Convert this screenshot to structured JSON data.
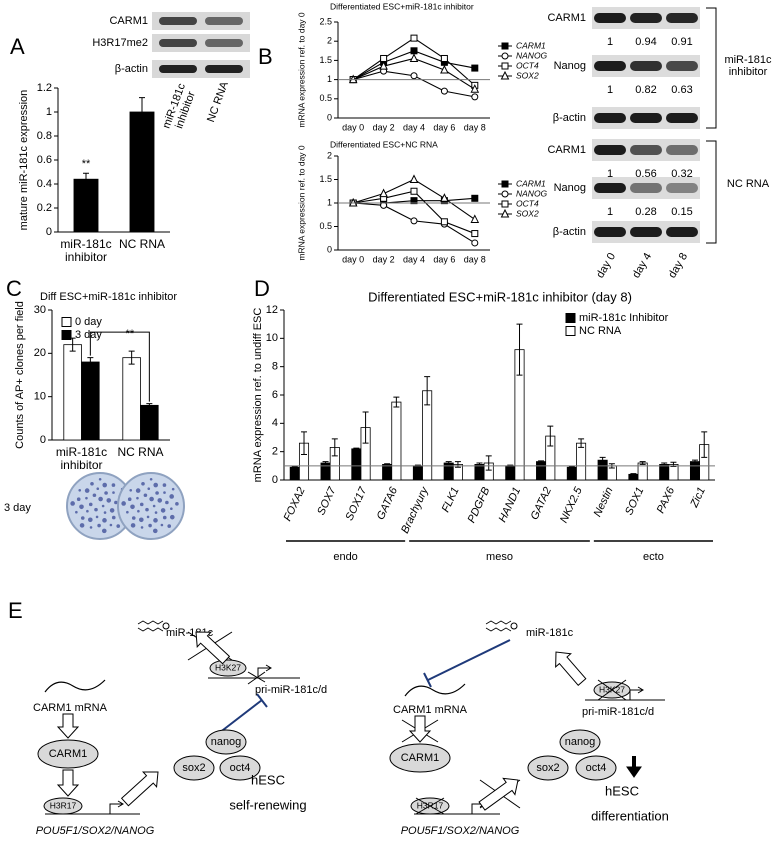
{
  "panels": [
    "A",
    "B",
    "C",
    "D",
    "E"
  ],
  "chart_data": [
    {
      "type": "bar",
      "ylabel": "mature miR-181c expression",
      "categories": [
        "miR-181c inhibitor",
        "NC RNA"
      ],
      "values": [
        0.44,
        1.0
      ],
      "errors": [
        0.05,
        0.12
      ],
      "color": "#000000",
      "ylim": [
        0,
        1.2
      ],
      "yticks": [
        0,
        0.2,
        0.4,
        0.6,
        0.8,
        1,
        1.2
      ],
      "annotation": "**"
    },
    {
      "type": "line",
      "title": "Differentiated ESC+miR-181c inhibitor",
      "ylabel": "mRNA expression ref. to day 0",
      "categories": [
        "day 0",
        "day 2",
        "day 4",
        "day 6",
        "day 8"
      ],
      "series": [
        {
          "name": "CARM1",
          "color": "#000000",
          "marker": "square-filled",
          "values": [
            1,
            1.45,
            1.75,
            1.45,
            1.3
          ]
        },
        {
          "name": "NANOG",
          "color": "#000000",
          "marker": "circle-open",
          "values": [
            1,
            1.22,
            1.1,
            0.7,
            0.55
          ]
        },
        {
          "name": "OCT4",
          "color": "#000000",
          "marker": "square-open",
          "values": [
            1,
            1.55,
            2.08,
            1.55,
            0.85
          ]
        },
        {
          "name": "SOX2",
          "color": "#000000",
          "marker": "triangle-open",
          "values": [
            1,
            1.35,
            1.55,
            1.25,
            0.75
          ]
        }
      ],
      "ylim": [
        0,
        2.5
      ],
      "yticks": [
        0,
        0.5,
        1,
        1.5,
        2,
        2.5
      ],
      "hline": 1
    },
    {
      "type": "line",
      "title": "Differentiated ESC+NC RNA",
      "ylabel": "mRNA expression ref. to day 0",
      "categories": [
        "day 0",
        "day 2",
        "day 4",
        "day 6",
        "day 8"
      ],
      "series": [
        {
          "name": "CARM1",
          "color": "#000000",
          "marker": "square-filled",
          "values": [
            1,
            1,
            1.05,
            1.05,
            1.1
          ]
        },
        {
          "name": "NANOG",
          "color": "#000000",
          "marker": "circle-open",
          "values": [
            1,
            0.95,
            0.62,
            0.55,
            0.15
          ]
        },
        {
          "name": "OCT4",
          "color": "#000000",
          "marker": "square-open",
          "values": [
            1,
            1.1,
            1.25,
            0.6,
            0.35
          ]
        },
        {
          "name": "SOX2",
          "color": "#000000",
          "marker": "triangle-open",
          "values": [
            1,
            1.2,
            1.5,
            1.1,
            0.65
          ]
        }
      ],
      "ylim": [
        0,
        2
      ],
      "yticks": [
        0,
        0.5,
        1,
        1.5,
        2
      ],
      "hline": 1
    },
    {
      "type": "bar",
      "title": "Diff ESC+miR-181c inhibitor",
      "ylabel": "Counts of AP+ clones per field",
      "categories": [
        "miR-181c inhibitor",
        "NC RNA"
      ],
      "series": [
        {
          "name": "0 day",
          "color": "#ffffff",
          "values": [
            22,
            19
          ],
          "errors": [
            1.5,
            1.5
          ]
        },
        {
          "name": "3 day",
          "color": "#000000",
          "values": [
            18,
            8
          ],
          "errors": [
            1,
            0.4
          ]
        }
      ],
      "ylim": [
        0,
        30
      ],
      "yticks": [
        0,
        10,
        20,
        30
      ],
      "annotation": "**",
      "image_label": "3 day"
    },
    {
      "type": "bar",
      "title": "Differentiated ESC+miR-181c inhibitor (day 8)",
      "ylabel": "mRNA expression ref. to undiff ESC",
      "categories": [
        "FOXA2",
        "SOX7",
        "SOX17",
        "GATA6",
        "Brachyury",
        "FLK1",
        "PDGFB",
        "HAND1",
        "GATA2",
        "NKX2.5",
        "Nestin",
        "SOX1",
        "PAX6",
        "Zic1"
      ],
      "series": [
        {
          "name": "miR-181c Inhibitor",
          "color": "#000000",
          "values": [
            0.9,
            1.2,
            2.2,
            1.1,
            1.0,
            1.2,
            1.1,
            1.0,
            1.3,
            0.9,
            1.4,
            0.4,
            1.1,
            1.3
          ],
          "errors": [
            0.05,
            0.1,
            0.05,
            0.05,
            0.05,
            0.1,
            0.1,
            0.05,
            0.05,
            0.05,
            0.2,
            0.05,
            0.1,
            0.1
          ]
        },
        {
          "name": "NC RNA",
          "color": "#ffffff",
          "values": [
            2.6,
            2.3,
            3.7,
            5.5,
            6.3,
            1.1,
            1.2,
            9.2,
            3.1,
            2.6,
            1.0,
            1.2,
            1.1,
            2.5
          ],
          "errors": [
            0.8,
            0.6,
            1.1,
            0.35,
            1.0,
            0.2,
            0.5,
            1.8,
            0.7,
            0.3,
            0.15,
            0.1,
            0.15,
            0.9
          ]
        }
      ],
      "ylim": [
        0,
        12
      ],
      "yticks": [
        0,
        2,
        4,
        6,
        8,
        10,
        12
      ],
      "hline": 1,
      "groups": [
        "endo",
        "meso",
        "ecto"
      ]
    }
  ],
  "blot_a": {
    "rows": [
      "CARM1",
      "H3R17me2",
      "β-actin"
    ],
    "lanes": [
      "miR-181c inhibitor",
      "NC RNA"
    ]
  },
  "blot_b": {
    "rows": [
      {
        "label": "CARM1",
        "values": [
          1,
          0.94,
          0.91
        ]
      },
      {
        "label": "Nanog",
        "values": [
          1,
          0.82,
          0.63
        ]
      },
      {
        "label": "β-actin"
      },
      {
        "label": "CARM1",
        "values": [
          1,
          0.56,
          0.32
        ]
      },
      {
        "label": "Nanog",
        "values": [
          1,
          0.28,
          0.15
        ]
      },
      {
        "label": "β-actin"
      }
    ],
    "groups": [
      "miR-181c inhibitor",
      "NC RNA"
    ],
    "lanes": [
      "day 0",
      "day 4",
      "day 8"
    ]
  },
  "diagram": {
    "states": [
      {
        "mirna": "miR-181c",
        "histone": "H3K27",
        "pri_mirna": "pri-miR-181c/d",
        "mrna": "CARM1 mRNA",
        "protein": "CARM1",
        "factors": [
          "nanog",
          "sox2",
          "oct4"
        ],
        "gene_histone": "H3R17",
        "genes": "POU5F1/SOX2/NANOG",
        "cell": "hESC",
        "state": "self-renewing"
      },
      {
        "mirna": "miR-181c",
        "histone": "H3K27",
        "pri_mirna": "pri-miR-181c/d",
        "mrna": "CARM1 mRNA",
        "protein": "CARM1",
        "factors": [
          "nanog",
          "sox2",
          "oct4"
        ],
        "gene_histone": "H3R17",
        "genes": "POU5F1/SOX2/NANOG",
        "cell": "hESC",
        "state": "differentiation"
      }
    ]
  }
}
